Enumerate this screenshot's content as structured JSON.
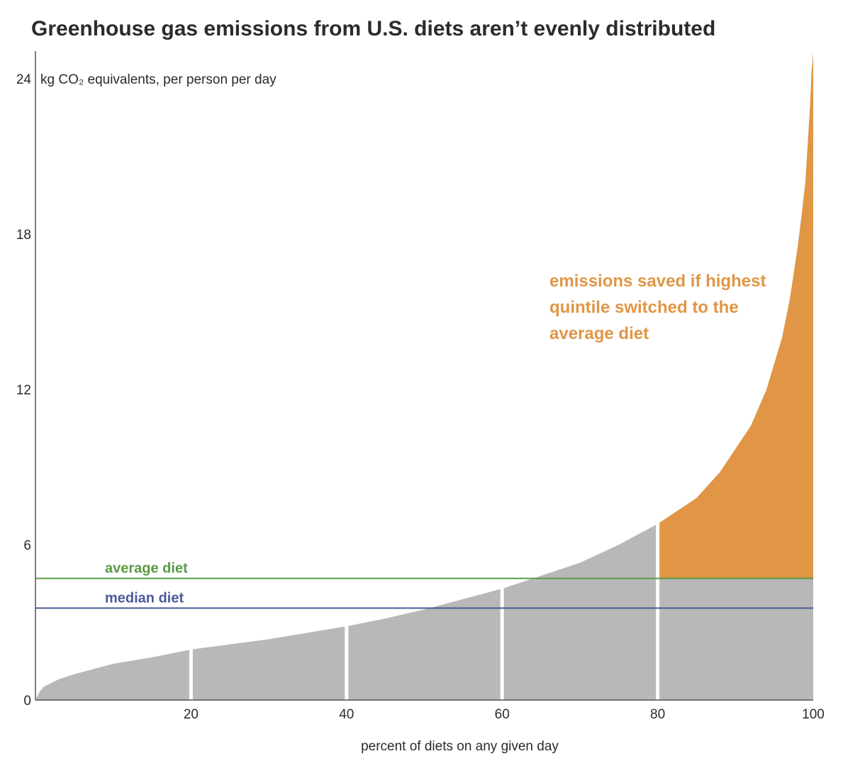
{
  "chart_data": {
    "type": "area",
    "title": "Greenhouse gas emissions from U.S. diets aren’t evenly distributed",
    "ylabel": "kg CO₂ equivalents, per person per day",
    "xlabel": "percent of diets on any given day",
    "xlim": [
      0,
      100
    ],
    "ylim": [
      0,
      25
    ],
    "x_ticks": [
      20,
      40,
      60,
      80,
      100
    ],
    "y_ticks": [
      0,
      6,
      12,
      18,
      24
    ],
    "x_tick_labels": [
      "20",
      "40",
      "60",
      "80",
      "100"
    ],
    "y_tick_labels": [
      "0",
      "6",
      "12",
      "18",
      "24"
    ],
    "series": [
      {
        "x": [
          0,
          0.5,
          1,
          2,
          3,
          5,
          10,
          15,
          20,
          25,
          30,
          35,
          40,
          45,
          50,
          55,
          60,
          65,
          70,
          75,
          80,
          85,
          88,
          90,
          92,
          94,
          96,
          97,
          98,
          98.5,
          99,
          99.3,
          99.6,
          99.8,
          100
        ],
        "values": [
          0.0,
          0.3,
          0.5,
          0.65,
          0.8,
          1.0,
          1.4,
          1.65,
          1.95,
          2.15,
          2.35,
          2.6,
          2.85,
          3.15,
          3.5,
          3.9,
          4.3,
          4.8,
          5.3,
          6.0,
          6.8,
          7.8,
          8.8,
          9.7,
          10.6,
          12.0,
          14.0,
          15.5,
          17.5,
          18.7,
          20.0,
          21.5,
          23.0,
          24.3,
          25.0
        ]
      }
    ],
    "quintile_dividers": [
      20,
      40,
      60,
      80
    ],
    "reference_lines": [
      {
        "label": "average diet",
        "value": 4.7,
        "color": "#5a9a46"
      },
      {
        "label": "median diet",
        "value": 3.55,
        "color": "#4a5a9a"
      }
    ],
    "highlight": {
      "from_x": 80,
      "to_x": 100,
      "above_value": 4.7,
      "color": "#e09645",
      "annotation": [
        "emissions saved if highest",
        "quintile switched to the",
        "average diet"
      ]
    },
    "colors": {
      "area": "#b8b8b8",
      "divider": "#ffffff",
      "axis": "#555555",
      "text": "#2b2b2b"
    }
  }
}
